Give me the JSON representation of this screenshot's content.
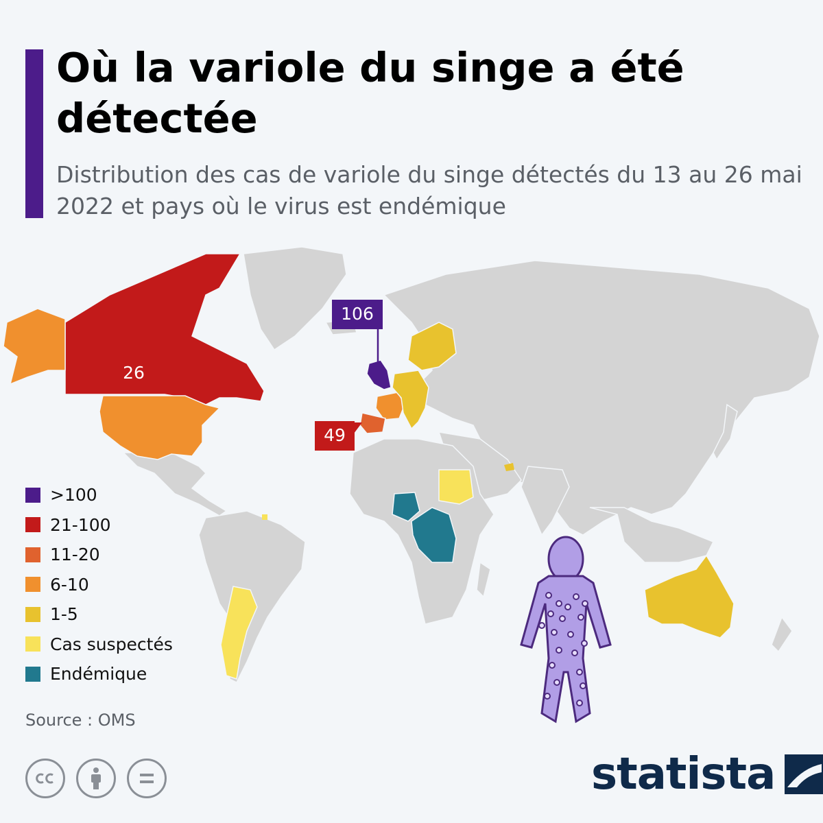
{
  "header": {
    "title": "Où la variole du singe a été détectée",
    "subtitle": "Distribution des cas de variole du singe détectés du 13 au 26 mai 2022 et pays où le virus est endémique"
  },
  "colors": {
    "accent": "#4c1c8a",
    "over_100": "#4c1c8a",
    "c21_100": "#c21a1a",
    "c11_20": "#e0622e",
    "c6_10": "#f0902e",
    "c1_5": "#e8c22e",
    "suspected": "#f8e25a",
    "endemic": "#21798e",
    "land": "#d4d4d4",
    "figure": "#b19ee6"
  },
  "map": {
    "callouts": {
      "uk": "106",
      "canada": "26",
      "spain": "49"
    }
  },
  "legend": {
    "items": [
      {
        "label": ">100",
        "color": "#4c1c8a"
      },
      {
        "label": "21-100",
        "color": "#c21a1a"
      },
      {
        "label": "11-20",
        "color": "#e0622e"
      },
      {
        "label": "6-10",
        "color": "#f0902e"
      },
      {
        "label": "1-5",
        "color": "#e8c22e"
      },
      {
        "label": "Cas suspectés",
        "color": "#f8e25a"
      },
      {
        "label": "Endémique",
        "color": "#21798e"
      }
    ]
  },
  "footer": {
    "source": "Source : OMS",
    "brand": "statista",
    "license_icons": [
      "cc-icon",
      "attribution-icon",
      "no-derivatives-icon"
    ]
  }
}
